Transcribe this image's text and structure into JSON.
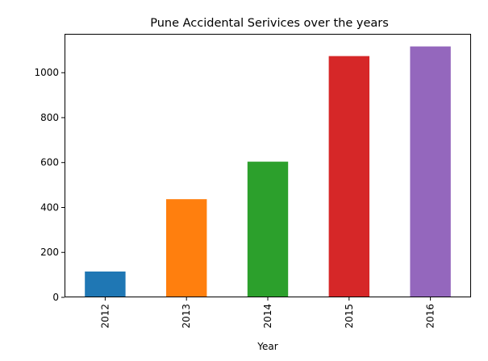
{
  "chart_data": {
    "type": "bar",
    "title": "Pune Accidental Serivices over the years",
    "xlabel": "Year",
    "ylabel": "",
    "categories": [
      "2012",
      "2013",
      "2014",
      "2015",
      "2016"
    ],
    "values": [
      115,
      437,
      604,
      1074,
      1117
    ],
    "colors": [
      "#1f77b4",
      "#ff7f0e",
      "#2ca02c",
      "#d62728",
      "#9467bd"
    ],
    "yticks": [
      0,
      200,
      400,
      600,
      800,
      1000
    ],
    "ylim": [
      0,
      1173
    ],
    "grid": false,
    "legend": "none"
  }
}
